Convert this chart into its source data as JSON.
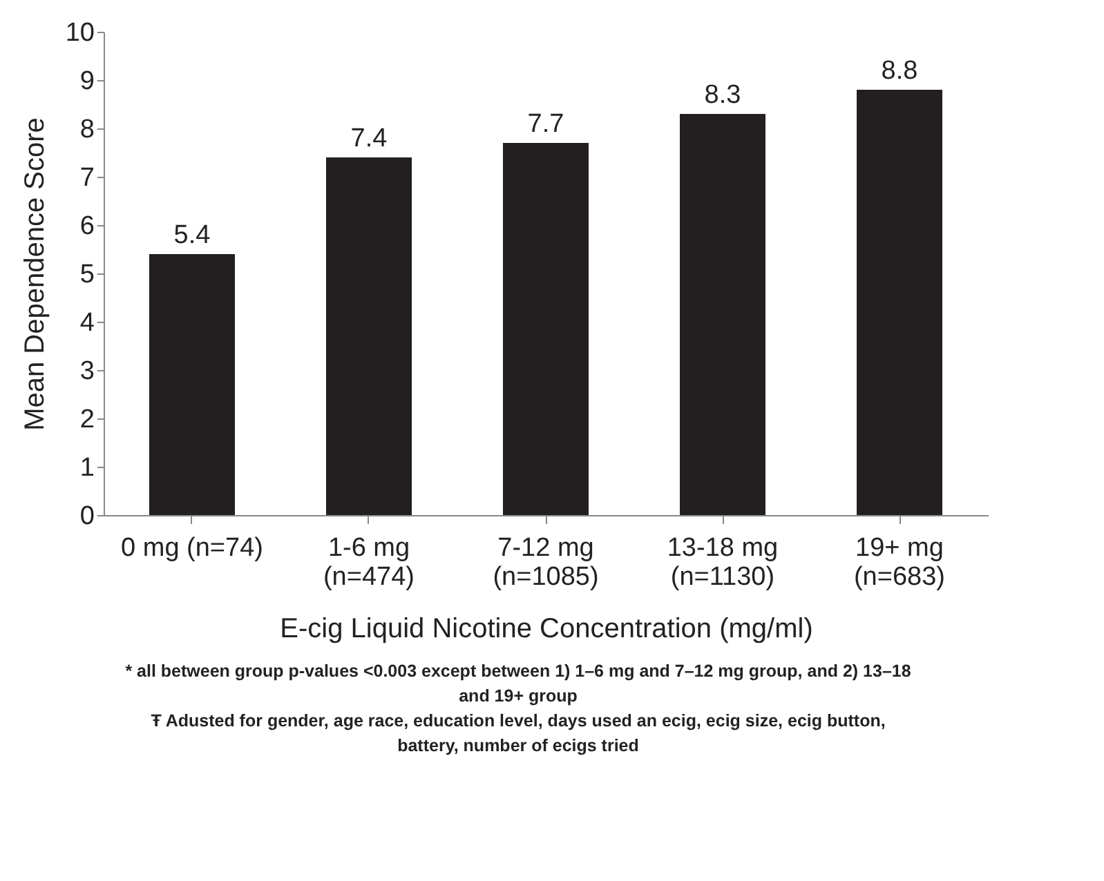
{
  "chart_data": {
    "type": "bar",
    "xlabel": "E-cig Liquid Nicotine Concentration (mg/ml)",
    "ylabel": "Mean Dependence Score",
    "categories": [
      "0 mg (n=74)",
      "1-6 mg (n=474)",
      "7-12 mg (n=1085)",
      "13-18 mg (n=1130)",
      "19+ mg (n=683)"
    ],
    "values": [
      5.4,
      7.4,
      7.7,
      8.3,
      8.8
    ],
    "color": "#231f20",
    "ylim": [
      0,
      10
    ],
    "yticks": [
      0,
      1,
      2,
      3,
      4,
      5,
      6,
      7,
      8,
      9,
      10
    ],
    "grid": false,
    "data_labels": true,
    "annotations": [
      "* all between group p-values <0.003 except between 1) 1–6 mg and 7–12 mg group, and 2) 13–18 and 19+ group",
      "Ŧ Adusted for gender, age race, education level, days used an ecig, ecig size, ecig button, battery, number of ecigs tried"
    ]
  }
}
